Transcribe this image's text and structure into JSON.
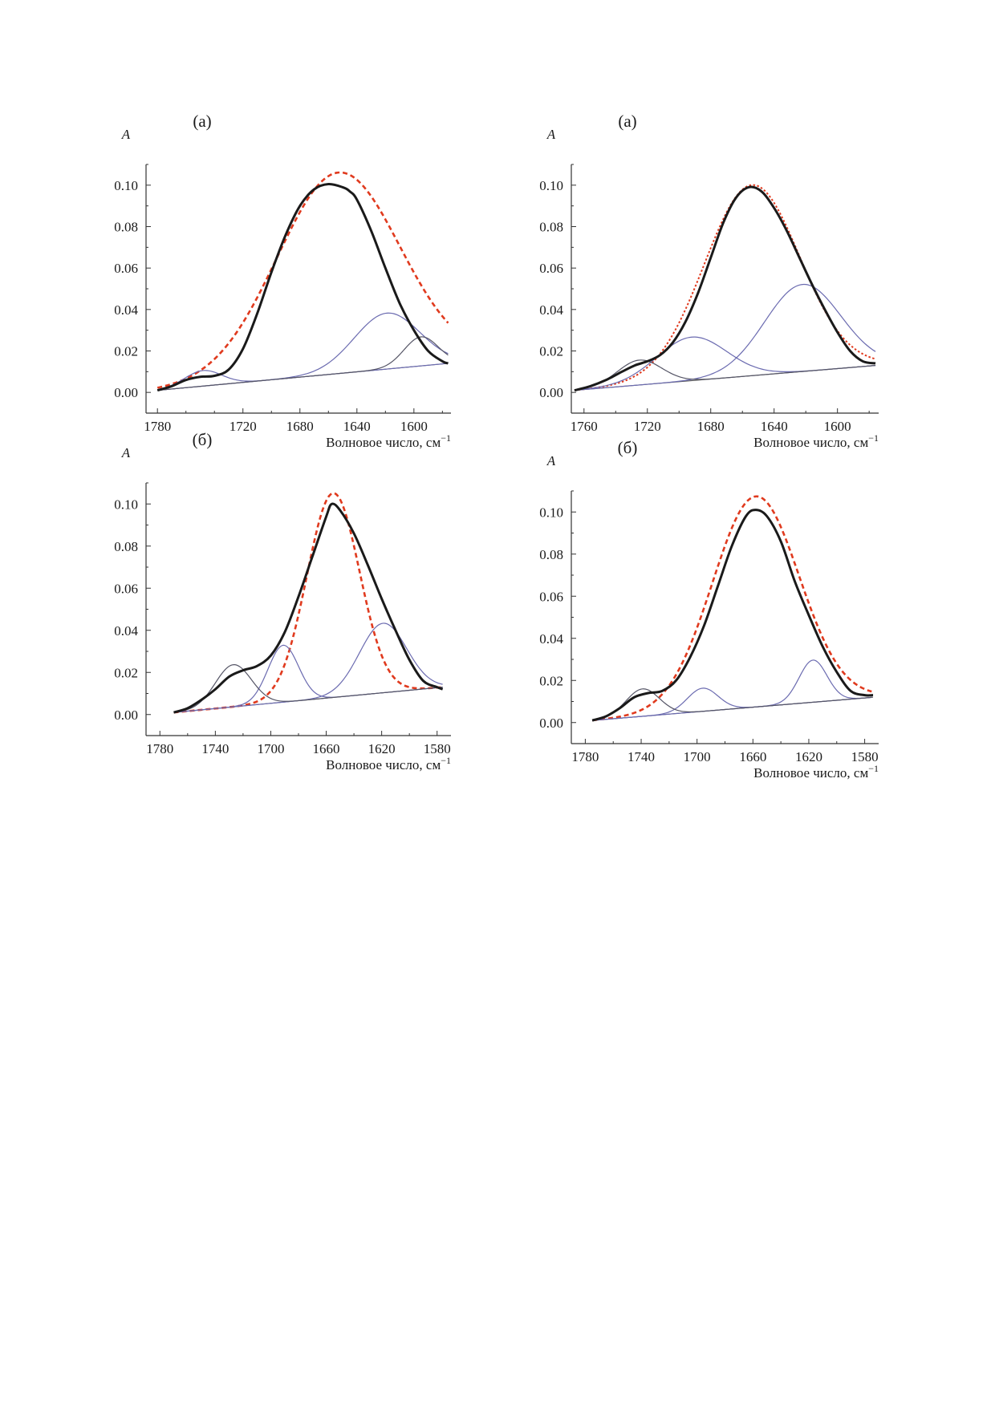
{
  "figure": {
    "x_label": "Волновое число, см",
    "x_label_sup": "−1",
    "y_label": "A"
  },
  "colors": {
    "envelope": "#1a1a1a",
    "main_band": "#e03a1e",
    "component": "#6b6bb0",
    "component_dark": "#555566",
    "baseline": "#555555",
    "axis": "#333333"
  },
  "chart_data": [
    {
      "type": "line",
      "panel_label": "(a)",
      "xlim": [
        1788,
        1574
      ],
      "ylim": [
        -0.01,
        0.11
      ],
      "x_ticks": [
        1780,
        1720,
        1680,
        1640,
        1600
      ],
      "y_ticks": [
        "0.00",
        "0.02",
        "0.04",
        "0.06",
        "0.08",
        "0.10"
      ],
      "baseline": {
        "x": [
          1780,
          1576
        ],
        "y": [
          0.001,
          0.014
        ]
      },
      "envelope": {
        "x": [
          1780,
          1770,
          1760,
          1750,
          1740,
          1730,
          1720,
          1710,
          1700,
          1690,
          1680,
          1670,
          1660,
          1650,
          1645,
          1640,
          1630,
          1620,
          1610,
          1600,
          1590,
          1580,
          1576
        ],
        "y": [
          0.001,
          0.003,
          0.006,
          0.0075,
          0.008,
          0.011,
          0.021,
          0.038,
          0.058,
          0.076,
          0.09,
          0.098,
          0.1005,
          0.099,
          0.097,
          0.093,
          0.078,
          0.06,
          0.043,
          0.03,
          0.02,
          0.015,
          0.014
        ]
      },
      "components": [
        {
          "style": "dashed",
          "center": 1653,
          "height": 0.097,
          "width": 43
        },
        {
          "style": "solid",
          "center": 1619,
          "height": 0.027,
          "width": 23
        },
        {
          "style": "solid",
          "center": 1748,
          "height": 0.0075,
          "width": 13
        },
        {
          "style": "solid",
          "center": 1595,
          "height": 0.014,
          "width": 12
        }
      ]
    },
    {
      "type": "line",
      "panel_label": "(a)",
      "xlim": [
        1768,
        1574
      ],
      "ylim": [
        -0.01,
        0.11
      ],
      "x_ticks": [
        1760,
        1720,
        1680,
        1640,
        1600
      ],
      "y_ticks": [
        "0.00",
        "0.02",
        "0.04",
        "0.06",
        "0.08",
        "0.10"
      ],
      "baseline": {
        "x": [
          1766,
          1576
        ],
        "y": [
          0.001,
          0.013
        ]
      },
      "envelope": {
        "x": [
          1766,
          1756,
          1746,
          1736,
          1728,
          1720,
          1712,
          1704,
          1696,
          1688,
          1680,
          1672,
          1664,
          1656,
          1648,
          1640,
          1632,
          1624,
          1616,
          1608,
          1600,
          1592,
          1584,
          1576
        ],
        "y": [
          0.001,
          0.003,
          0.006,
          0.01,
          0.013,
          0.015,
          0.018,
          0.024,
          0.034,
          0.048,
          0.065,
          0.082,
          0.094,
          0.099,
          0.097,
          0.089,
          0.078,
          0.065,
          0.052,
          0.04,
          0.029,
          0.02,
          0.015,
          0.014
        ]
      },
      "components": [
        {
          "style": "dotted",
          "center": 1654,
          "height": 0.092,
          "width": 30
        },
        {
          "style": "solid",
          "center": 1622,
          "height": 0.042,
          "width": 24
        },
        {
          "style": "solid",
          "center": 1692,
          "height": 0.021,
          "width": 22
        },
        {
          "style": "solid",
          "center": 1725,
          "height": 0.012,
          "width": 14
        }
      ]
    },
    {
      "type": "line",
      "panel_label": "(б)",
      "xlim": [
        1790,
        1570
      ],
      "ylim": [
        -0.01,
        0.11
      ],
      "x_ticks": [
        1780,
        1740,
        1700,
        1660,
        1620,
        1580
      ],
      "y_ticks": [
        "0.00",
        "0.02",
        "0.04",
        "0.06",
        "0.08",
        "0.10"
      ],
      "baseline": {
        "x": [
          1770,
          1576
        ],
        "y": [
          0.001,
          0.013
        ]
      },
      "envelope": {
        "x": [
          1770,
          1760,
          1750,
          1740,
          1730,
          1720,
          1710,
          1700,
          1690,
          1680,
          1670,
          1660,
          1656,
          1650,
          1640,
          1630,
          1620,
          1610,
          1600,
          1590,
          1580,
          1576
        ],
        "y": [
          0.001,
          0.003,
          0.007,
          0.012,
          0.018,
          0.021,
          0.023,
          0.028,
          0.039,
          0.056,
          0.075,
          0.094,
          0.1,
          0.097,
          0.086,
          0.071,
          0.055,
          0.04,
          0.026,
          0.016,
          0.013,
          0.012
        ]
      },
      "components": [
        {
          "style": "dashed",
          "center": 1655,
          "height": 0.097,
          "width": 19
        },
        {
          "style": "solid",
          "center": 1619,
          "height": 0.033,
          "width": 17
        },
        {
          "style": "solid",
          "center": 1691,
          "height": 0.027,
          "width": 11
        },
        {
          "style": "solid",
          "center": 1727,
          "height": 0.02,
          "width": 13
        }
      ]
    },
    {
      "type": "line",
      "panel_label": "(б)",
      "xlim": [
        1790,
        1570
      ],
      "ylim": [
        -0.01,
        0.11
      ],
      "x_ticks": [
        1780,
        1740,
        1700,
        1660,
        1620,
        1580
      ],
      "y_ticks": [
        "0.00",
        "0.02",
        "0.04",
        "0.06",
        "0.08",
        "0.10"
      ],
      "baseline": {
        "x": [
          1775,
          1574
        ],
        "y": [
          0.001,
          0.012
        ]
      },
      "envelope": {
        "x": [
          1775,
          1765,
          1755,
          1745,
          1735,
          1725,
          1715,
          1705,
          1695,
          1685,
          1675,
          1665,
          1658,
          1650,
          1640,
          1630,
          1620,
          1610,
          1600,
          1590,
          1580,
          1574
        ],
        "y": [
          0.001,
          0.003,
          0.007,
          0.012,
          0.014,
          0.015,
          0.02,
          0.031,
          0.046,
          0.065,
          0.084,
          0.098,
          0.101,
          0.098,
          0.086,
          0.067,
          0.051,
          0.036,
          0.024,
          0.015,
          0.013,
          0.013
        ]
      },
      "components": [
        {
          "style": "dashed",
          "center": 1658,
          "height": 0.1,
          "width": 31
        },
        {
          "style": "solid",
          "center": 1617,
          "height": 0.02,
          "width": 10
        },
        {
          "style": "solid",
          "center": 1696,
          "height": 0.011,
          "width": 11
        },
        {
          "style": "solid",
          "center": 1739,
          "height": 0.013,
          "width": 12
        }
      ]
    }
  ]
}
